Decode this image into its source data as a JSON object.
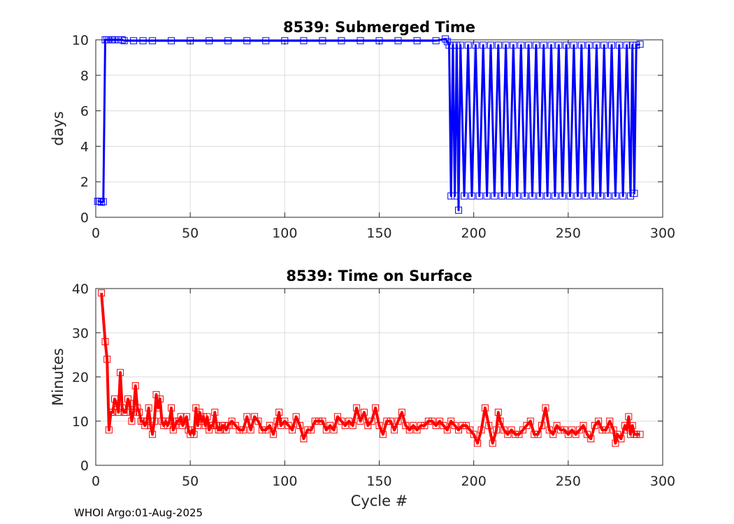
{
  "colors": {
    "submerged": "#0000ff",
    "surface": "#ff0000",
    "grid": "#dcdcdc",
    "axes": "#262626"
  },
  "footer": "WHOI Argo:01-Aug-2025",
  "chart_data": [
    {
      "type": "line",
      "title": "8539: Submerged Time",
      "xlabel": "",
      "ylabel": "days",
      "xlim": [
        0,
        300
      ],
      "ylim": [
        0,
        10
      ],
      "xticks": [
        0,
        50,
        100,
        150,
        200,
        250,
        300
      ],
      "yticks": [
        0,
        2,
        4,
        6,
        8,
        10
      ],
      "grid": true,
      "marker": "square",
      "series": [
        {
          "points": [
            [
              1,
              0.9
            ],
            [
              2,
              0.9
            ],
            [
              3,
              0.85
            ],
            [
              4,
              0.88
            ],
            [
              5,
              10
            ],
            [
              6,
              10
            ],
            [
              7,
              10
            ],
            [
              8,
              10
            ],
            [
              9,
              10
            ],
            [
              10,
              10
            ],
            [
              12,
              10
            ],
            [
              14,
              10
            ],
            [
              15,
              9.95
            ],
            [
              20,
              9.95
            ],
            [
              25,
              9.95
            ],
            [
              30,
              9.95
            ],
            [
              40,
              9.95
            ],
            [
              50,
              9.95
            ],
            [
              60,
              9.95
            ],
            [
              70,
              9.95
            ],
            [
              80,
              9.95
            ],
            [
              90,
              9.95
            ],
            [
              100,
              9.95
            ],
            [
              110,
              9.95
            ],
            [
              120,
              9.95
            ],
            [
              130,
              9.95
            ],
            [
              140,
              9.95
            ],
            [
              150,
              9.95
            ],
            [
              160,
              9.95
            ],
            [
              170,
              9.95
            ],
            [
              180,
              9.95
            ],
            [
              185,
              10.05
            ],
            [
              186,
              9.9
            ],
            [
              187,
              9.7
            ],
            [
              188,
              1.2
            ],
            [
              189,
              9.7
            ],
            [
              190,
              1.2
            ],
            [
              191,
              9.7
            ],
            [
              192,
              0.4
            ],
            [
              193,
              9.7
            ],
            [
              195,
              1.2
            ],
            [
              197,
              9.7
            ],
            [
              199,
              1.2
            ],
            [
              201,
              9.7
            ],
            [
              203,
              1.2
            ],
            [
              205,
              9.7
            ],
            [
              207,
              1.2
            ],
            [
              209,
              9.7
            ],
            [
              211,
              1.2
            ],
            [
              213,
              9.7
            ],
            [
              215,
              1.2
            ],
            [
              217,
              9.7
            ],
            [
              219,
              1.2
            ],
            [
              221,
              9.7
            ],
            [
              223,
              1.2
            ],
            [
              225,
              9.7
            ],
            [
              227,
              1.2
            ],
            [
              229,
              9.7
            ],
            [
              231,
              1.2
            ],
            [
              233,
              9.7
            ],
            [
              235,
              1.2
            ],
            [
              237,
              9.7
            ],
            [
              239,
              1.2
            ],
            [
              241,
              9.7
            ],
            [
              243,
              1.2
            ],
            [
              245,
              9.7
            ],
            [
              247,
              1.2
            ],
            [
              249,
              9.7
            ],
            [
              251,
              1.2
            ],
            [
              253,
              9.7
            ],
            [
              255,
              1.2
            ],
            [
              257,
              9.7
            ],
            [
              259,
              1.2
            ],
            [
              261,
              9.7
            ],
            [
              263,
              1.2
            ],
            [
              265,
              9.7
            ],
            [
              267,
              1.2
            ],
            [
              269,
              9.7
            ],
            [
              271,
              1.2
            ],
            [
              273,
              9.7
            ],
            [
              275,
              1.2
            ],
            [
              277,
              9.7
            ],
            [
              279,
              1.2
            ],
            [
              281,
              9.7
            ],
            [
              283,
              1.2
            ],
            [
              284,
              9.7
            ],
            [
              285,
              1.35
            ],
            [
              286,
              9.7
            ],
            [
              288,
              9.75
            ]
          ]
        }
      ]
    },
    {
      "type": "line",
      "title": "8539: Time on Surface",
      "xlabel": "Cycle #",
      "ylabel": "Minutes",
      "xlim": [
        0,
        300
      ],
      "ylim": [
        0,
        40
      ],
      "xticks": [
        0,
        50,
        100,
        150,
        200,
        250,
        300
      ],
      "yticks": [
        0,
        10,
        20,
        30,
        40
      ],
      "grid": true,
      "marker": "square",
      "series": [
        {
          "points": [
            [
              3,
              39
            ],
            [
              5,
              28
            ],
            [
              6,
              24
            ],
            [
              7,
              8
            ],
            [
              8,
              12
            ],
            [
              9,
              12
            ],
            [
              10,
              15
            ],
            [
              11,
              14
            ],
            [
              12,
              12
            ],
            [
              13,
              21
            ],
            [
              14,
              13
            ],
            [
              15,
              12
            ],
            [
              16,
              12
            ],
            [
              17,
              15
            ],
            [
              18,
              14
            ],
            [
              19,
              10
            ],
            [
              20,
              12
            ],
            [
              21,
              18
            ],
            [
              22,
              13
            ],
            [
              23,
              12
            ],
            [
              24,
              10
            ],
            [
              25,
              10
            ],
            [
              26,
              9
            ],
            [
              27,
              10
            ],
            [
              28,
              13
            ],
            [
              29,
              9
            ],
            [
              30,
              7
            ],
            [
              31,
              10
            ],
            [
              32,
              16
            ],
            [
              33,
              13
            ],
            [
              34,
              15
            ],
            [
              35,
              10
            ],
            [
              36,
              9
            ],
            [
              37,
              10
            ],
            [
              38,
              9
            ],
            [
              39,
              10
            ],
            [
              40,
              13
            ],
            [
              41,
              8
            ],
            [
              42,
              9
            ],
            [
              43,
              10
            ],
            [
              44,
              10
            ],
            [
              45,
              11
            ],
            [
              46,
              9
            ],
            [
              47,
              10
            ],
            [
              48,
              11
            ],
            [
              49,
              8
            ],
            [
              50,
              7
            ],
            [
              51,
              8
            ],
            [
              52,
              7
            ],
            [
              53,
              13
            ],
            [
              54,
              9
            ],
            [
              55,
              12
            ],
            [
              56,
              10
            ],
            [
              57,
              11
            ],
            [
              58,
              9
            ],
            [
              59,
              11
            ],
            [
              60,
              8
            ],
            [
              61,
              9
            ],
            [
              62,
              9
            ],
            [
              63,
              12
            ],
            [
              64,
              9
            ],
            [
              65,
              8
            ],
            [
              66,
              8
            ],
            [
              67,
              9
            ],
            [
              68,
              9
            ],
            [
              69,
              8
            ],
            [
              70,
              9
            ],
            [
              72,
              10
            ],
            [
              74,
              9
            ],
            [
              76,
              8
            ],
            [
              78,
              8
            ],
            [
              80,
              11
            ],
            [
              82,
              8
            ],
            [
              84,
              11
            ],
            [
              86,
              10
            ],
            [
              88,
              8
            ],
            [
              90,
              8
            ],
            [
              92,
              9
            ],
            [
              94,
              7
            ],
            [
              96,
              10
            ],
            [
              97,
              12
            ],
            [
              98,
              9
            ],
            [
              100,
              10
            ],
            [
              102,
              9
            ],
            [
              104,
              8
            ],
            [
              106,
              11
            ],
            [
              108,
              9
            ],
            [
              110,
              6
            ],
            [
              112,
              8
            ],
            [
              114,
              8
            ],
            [
              116,
              10
            ],
            [
              118,
              10
            ],
            [
              120,
              10
            ],
            [
              122,
              8
            ],
            [
              124,
              9
            ],
            [
              126,
              8
            ],
            [
              128,
              11
            ],
            [
              130,
              10
            ],
            [
              132,
              9
            ],
            [
              134,
              10
            ],
            [
              136,
              9
            ],
            [
              138,
              13
            ],
            [
              140,
              10
            ],
            [
              142,
              12
            ],
            [
              144,
              9
            ],
            [
              146,
              10
            ],
            [
              148,
              13
            ],
            [
              150,
              9
            ],
            [
              152,
              7
            ],
            [
              154,
              10
            ],
            [
              156,
              10
            ],
            [
              158,
              8
            ],
            [
              160,
              10
            ],
            [
              162,
              12
            ],
            [
              164,
              9
            ],
            [
              166,
              8
            ],
            [
              168,
              9
            ],
            [
              170,
              8
            ],
            [
              172,
              9
            ],
            [
              174,
              9
            ],
            [
              176,
              10
            ],
            [
              178,
              10
            ],
            [
              180,
              9
            ],
            [
              182,
              10
            ],
            [
              184,
              9
            ],
            [
              186,
              8
            ],
            [
              188,
              10
            ],
            [
              190,
              9
            ],
            [
              192,
              8
            ],
            [
              194,
              9
            ],
            [
              196,
              9
            ],
            [
              198,
              8
            ],
            [
              200,
              7
            ],
            [
              202,
              5
            ],
            [
              204,
              8
            ],
            [
              206,
              13
            ],
            [
              208,
              9
            ],
            [
              210,
              5
            ],
            [
              212,
              8
            ],
            [
              213,
              12
            ],
            [
              214,
              10
            ],
            [
              216,
              8
            ],
            [
              218,
              7
            ],
            [
              220,
              8
            ],
            [
              222,
              7
            ],
            [
              224,
              7
            ],
            [
              226,
              8
            ],
            [
              228,
              9
            ],
            [
              230,
              10
            ],
            [
              232,
              7
            ],
            [
              234,
              7
            ],
            [
              236,
              9
            ],
            [
              238,
              13
            ],
            [
              240,
              8
            ],
            [
              242,
              7
            ],
            [
              244,
              9
            ],
            [
              246,
              8
            ],
            [
              248,
              8
            ],
            [
              250,
              7
            ],
            [
              252,
              8
            ],
            [
              254,
              7
            ],
            [
              256,
              8
            ],
            [
              258,
              9
            ],
            [
              260,
              7
            ],
            [
              262,
              6
            ],
            [
              264,
              9
            ],
            [
              266,
              10
            ],
            [
              268,
              8
            ],
            [
              270,
              8
            ],
            [
              272,
              10
            ],
            [
              274,
              8
            ],
            [
              275,
              5
            ],
            [
              276,
              7
            ],
            [
              278,
              6
            ],
            [
              280,
              9
            ],
            [
              281,
              8
            ],
            [
              282,
              11
            ],
            [
              283,
              7
            ],
            [
              284,
              9
            ],
            [
              285,
              7
            ],
            [
              286,
              7
            ],
            [
              288,
              7
            ]
          ]
        }
      ]
    }
  ]
}
